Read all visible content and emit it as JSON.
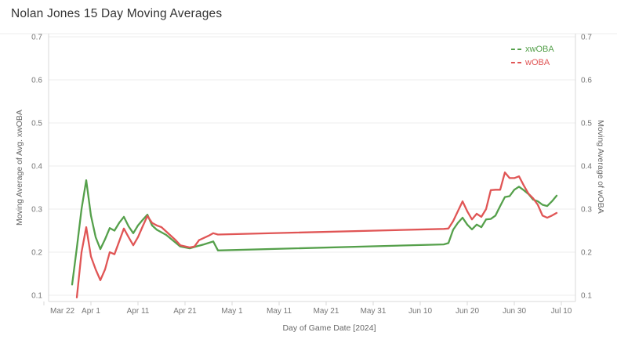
{
  "title": "Nolan Jones 15 Day Moving Averages",
  "colors": {
    "xwoba_green": "#55a04b",
    "woba_red": "#e05555",
    "title_text": "#343434",
    "tick_text": "#767676",
    "axis_title_text": "#666666",
    "gridline": "#ececec",
    "axis_ruler": "#d9d9d9"
  },
  "legend": {
    "items": [
      {
        "label": "xwOBA",
        "color": "#55a04b"
      },
      {
        "label": "wOBA",
        "color": "#e05555"
      }
    ]
  },
  "axes": {
    "left_title": "Moving Average of Avg. xwOBA",
    "right_title": "Moving Average of wOBA",
    "x_title": "Day of Game Date [2024]",
    "y_ticks": [
      0.7,
      0.6,
      0.5,
      0.4,
      0.3,
      0.2,
      0.1
    ],
    "x_ticks": [
      {
        "label": "Mar 22",
        "day": 0
      },
      {
        "label": "Apr 1",
        "day": 10
      },
      {
        "label": "Apr 11",
        "day": 20
      },
      {
        "label": "Apr 21",
        "day": 30
      },
      {
        "label": "May 1",
        "day": 40
      },
      {
        "label": "May 11",
        "day": 50
      },
      {
        "label": "May 21",
        "day": 60
      },
      {
        "label": "May 31",
        "day": 70
      },
      {
        "label": "Jun 10",
        "day": 80
      },
      {
        "label": "Jun 20",
        "day": 90
      },
      {
        "label": "Jun 30",
        "day": 100
      },
      {
        "label": "Jul 10",
        "day": 110
      }
    ]
  },
  "chart_data": {
    "type": "line",
    "title": "Nolan Jones 15 Day Moving Averages",
    "xlabel": "Day of Game Date [2024]",
    "ylabel_left": "Moving Average of Avg. xwOBA",
    "ylabel_right": "Moving Average of wOBA",
    "ylim": [
      0.1,
      0.7
    ],
    "x_axis_range": [
      "Mar 22",
      "Jul 10"
    ],
    "grid": "horizontal-only",
    "legend_position": "top-right-inside",
    "note_day_field": "day = days after Mar 22, 2024; gap Apr 28 to Jun 15 has no games (straight connector)",
    "series": [
      {
        "name": "xwOBA",
        "color": "#55a04b",
        "points": [
          {
            "date": "Mar 28",
            "day": 6,
            "value": 0.125
          },
          {
            "date": "Mar 29",
            "day": 7,
            "value": 0.21
          },
          {
            "date": "Mar 30",
            "day": 8,
            "value": 0.3
          },
          {
            "date": "Mar 31",
            "day": 9,
            "value": 0.367
          },
          {
            "date": "Apr 1",
            "day": 10,
            "value": 0.285
          },
          {
            "date": "Apr 2",
            "day": 11,
            "value": 0.235
          },
          {
            "date": "Apr 3",
            "day": 12,
            "value": 0.207
          },
          {
            "date": "Apr 4",
            "day": 13,
            "value": 0.23
          },
          {
            "date": "Apr 5",
            "day": 14,
            "value": 0.256
          },
          {
            "date": "Apr 6",
            "day": 15,
            "value": 0.25
          },
          {
            "date": "Apr 7",
            "day": 16,
            "value": 0.268
          },
          {
            "date": "Apr 8",
            "day": 17,
            "value": 0.282
          },
          {
            "date": "Apr 9",
            "day": 18,
            "value": 0.26
          },
          {
            "date": "Apr 10",
            "day": 19,
            "value": 0.244
          },
          {
            "date": "Apr 11",
            "day": 20,
            "value": 0.262
          },
          {
            "date": "Apr 12",
            "day": 21,
            "value": 0.275
          },
          {
            "date": "Apr 13",
            "day": 22,
            "value": 0.287
          },
          {
            "date": "Apr 14",
            "day": 23,
            "value": 0.262
          },
          {
            "date": "Apr 15",
            "day": 24,
            "value": 0.252
          },
          {
            "date": "Apr 17",
            "day": 26,
            "value": 0.24
          },
          {
            "date": "Apr 19",
            "day": 28,
            "value": 0.222
          },
          {
            "date": "Apr 20",
            "day": 29,
            "value": 0.213
          },
          {
            "date": "Apr 22",
            "day": 31,
            "value": 0.209
          },
          {
            "date": "Apr 23",
            "day": 32,
            "value": 0.212
          },
          {
            "date": "Apr 25",
            "day": 34,
            "value": 0.218
          },
          {
            "date": "Apr 27",
            "day": 36,
            "value": 0.225
          },
          {
            "date": "Apr 28",
            "day": 37,
            "value": 0.204
          },
          {
            "date": "Jun 15",
            "day": 85,
            "value": 0.218
          },
          {
            "date": "Jun 16",
            "day": 86,
            "value": 0.221
          },
          {
            "date": "Jun 17",
            "day": 87,
            "value": 0.252
          },
          {
            "date": "Jun 18",
            "day": 88,
            "value": 0.268
          },
          {
            "date": "Jun 19",
            "day": 89,
            "value": 0.28
          },
          {
            "date": "Jun 20",
            "day": 90,
            "value": 0.264
          },
          {
            "date": "Jun 21",
            "day": 91,
            "value": 0.253
          },
          {
            "date": "Jun 22",
            "day": 92,
            "value": 0.264
          },
          {
            "date": "Jun 23",
            "day": 93,
            "value": 0.258
          },
          {
            "date": "Jun 24",
            "day": 94,
            "value": 0.276
          },
          {
            "date": "Jun 25",
            "day": 95,
            "value": 0.277
          },
          {
            "date": "Jun 26",
            "day": 96,
            "value": 0.285
          },
          {
            "date": "Jun 27",
            "day": 97,
            "value": 0.307
          },
          {
            "date": "Jun 28",
            "day": 98,
            "value": 0.328
          },
          {
            "date": "Jun 29",
            "day": 99,
            "value": 0.33
          },
          {
            "date": "Jun 30",
            "day": 100,
            "value": 0.345
          },
          {
            "date": "Jul 1",
            "day": 101,
            "value": 0.352
          },
          {
            "date": "Jul 2",
            "day": 102,
            "value": 0.344
          },
          {
            "date": "Jul 3",
            "day": 103,
            "value": 0.335
          },
          {
            "date": "Jul 4",
            "day": 104,
            "value": 0.322
          },
          {
            "date": "Jul 5",
            "day": 105,
            "value": 0.318
          },
          {
            "date": "Jul 6",
            "day": 106,
            "value": 0.31
          },
          {
            "date": "Jul 7",
            "day": 107,
            "value": 0.307
          },
          {
            "date": "Jul 8",
            "day": 108,
            "value": 0.318
          },
          {
            "date": "Jul 9",
            "day": 109,
            "value": 0.331
          }
        ]
      },
      {
        "name": "wOBA",
        "color": "#e05555",
        "points": [
          {
            "date": "Mar 29",
            "day": 7,
            "value": 0.095
          },
          {
            "date": "Mar 30",
            "day": 8,
            "value": 0.2
          },
          {
            "date": "Mar 31",
            "day": 9,
            "value": 0.258
          },
          {
            "date": "Apr 1",
            "day": 10,
            "value": 0.19
          },
          {
            "date": "Apr 2",
            "day": 11,
            "value": 0.16
          },
          {
            "date": "Apr 3",
            "day": 12,
            "value": 0.135
          },
          {
            "date": "Apr 4",
            "day": 13,
            "value": 0.16
          },
          {
            "date": "Apr 5",
            "day": 14,
            "value": 0.2
          },
          {
            "date": "Apr 6",
            "day": 15,
            "value": 0.195
          },
          {
            "date": "Apr 7",
            "day": 16,
            "value": 0.225
          },
          {
            "date": "Apr 8",
            "day": 17,
            "value": 0.255
          },
          {
            "date": "Apr 9",
            "day": 18,
            "value": 0.235
          },
          {
            "date": "Apr 10",
            "day": 19,
            "value": 0.216
          },
          {
            "date": "Apr 11",
            "day": 20,
            "value": 0.235
          },
          {
            "date": "Apr 12",
            "day": 21,
            "value": 0.26
          },
          {
            "date": "Apr 13",
            "day": 22,
            "value": 0.284
          },
          {
            "date": "Apr 14",
            "day": 23,
            "value": 0.268
          },
          {
            "date": "Apr 15",
            "day": 24,
            "value": 0.262
          },
          {
            "date": "Apr 16",
            "day": 25,
            "value": 0.258
          },
          {
            "date": "Apr 17",
            "day": 26,
            "value": 0.248
          },
          {
            "date": "Apr 19",
            "day": 28,
            "value": 0.228
          },
          {
            "date": "Apr 20",
            "day": 29,
            "value": 0.216
          },
          {
            "date": "Apr 22",
            "day": 31,
            "value": 0.211
          },
          {
            "date": "Apr 23",
            "day": 32,
            "value": 0.213
          },
          {
            "date": "Apr 24",
            "day": 33,
            "value": 0.228
          },
          {
            "date": "Apr 26",
            "day": 35,
            "value": 0.238
          },
          {
            "date": "Apr 27",
            "day": 36,
            "value": 0.244
          },
          {
            "date": "Apr 28",
            "day": 37,
            "value": 0.241
          },
          {
            "date": "Jun 15",
            "day": 85,
            "value": 0.254
          },
          {
            "date": "Jun 16",
            "day": 86,
            "value": 0.255
          },
          {
            "date": "Jun 17",
            "day": 87,
            "value": 0.272
          },
          {
            "date": "Jun 18",
            "day": 88,
            "value": 0.295
          },
          {
            "date": "Jun 19",
            "day": 89,
            "value": 0.318
          },
          {
            "date": "Jun 20",
            "day": 90,
            "value": 0.295
          },
          {
            "date": "Jun 21",
            "day": 91,
            "value": 0.276
          },
          {
            "date": "Jun 22",
            "day": 92,
            "value": 0.289
          },
          {
            "date": "Jun 23",
            "day": 93,
            "value": 0.282
          },
          {
            "date": "Jun 24",
            "day": 94,
            "value": 0.3
          },
          {
            "date": "Jun 25",
            "day": 95,
            "value": 0.344
          },
          {
            "date": "Jun 26",
            "day": 96,
            "value": 0.345
          },
          {
            "date": "Jun 27",
            "day": 97,
            "value": 0.345
          },
          {
            "date": "Jun 28",
            "day": 98,
            "value": 0.385
          },
          {
            "date": "Jun 29",
            "day": 99,
            "value": 0.372
          },
          {
            "date": "Jun 30",
            "day": 100,
            "value": 0.372
          },
          {
            "date": "Jul 1",
            "day": 101,
            "value": 0.376
          },
          {
            "date": "Jul 2",
            "day": 102,
            "value": 0.355
          },
          {
            "date": "Jul 3",
            "day": 103,
            "value": 0.336
          },
          {
            "date": "Jul 4",
            "day": 104,
            "value": 0.325
          },
          {
            "date": "Jul 5",
            "day": 105,
            "value": 0.31
          },
          {
            "date": "Jul 6",
            "day": 106,
            "value": 0.285
          },
          {
            "date": "Jul 7",
            "day": 107,
            "value": 0.28
          },
          {
            "date": "Jul 8",
            "day": 108,
            "value": 0.285
          },
          {
            "date": "Jul 9",
            "day": 109,
            "value": 0.291
          }
        ]
      }
    ]
  }
}
